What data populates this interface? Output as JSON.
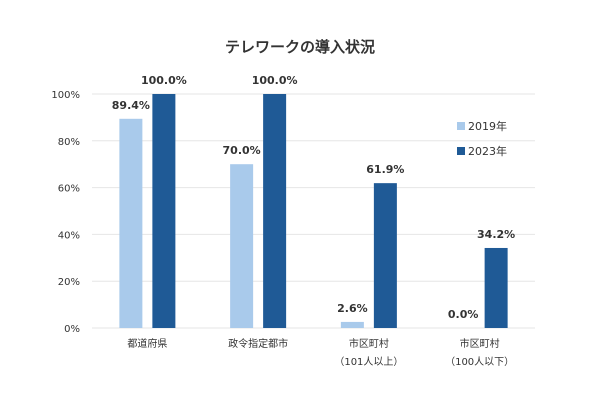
{
  "chart_data": {
    "type": "bar",
    "title": "テレワークの導入状況",
    "categories": [
      [
        "都道府県"
      ],
      [
        "政令指定都市"
      ],
      [
        "市区町村",
        "（101人以上）"
      ],
      [
        "市区町村",
        "（100人以下）"
      ]
    ],
    "series": [
      {
        "name": "2019年",
        "color": "#a9caeb",
        "values": [
          89.4,
          70.0,
          2.6,
          0.0
        ],
        "labels": [
          "89.4%",
          "70.0%",
          "2.6%",
          "0.0%"
        ]
      },
      {
        "name": "2023年",
        "color": "#1f5a96",
        "values": [
          100.0,
          100.0,
          61.9,
          34.2
        ],
        "labels": [
          "100.0%",
          "100.0%",
          "61.9%",
          "34.2%"
        ]
      }
    ],
    "ylim": [
      0,
      100
    ],
    "yticks": [
      "0%",
      "20%",
      "40%",
      "60%",
      "80%",
      "100%"
    ],
    "ytick_values": [
      0,
      20,
      40,
      60,
      80,
      100
    ],
    "grid": true,
    "legend_position": "right"
  }
}
